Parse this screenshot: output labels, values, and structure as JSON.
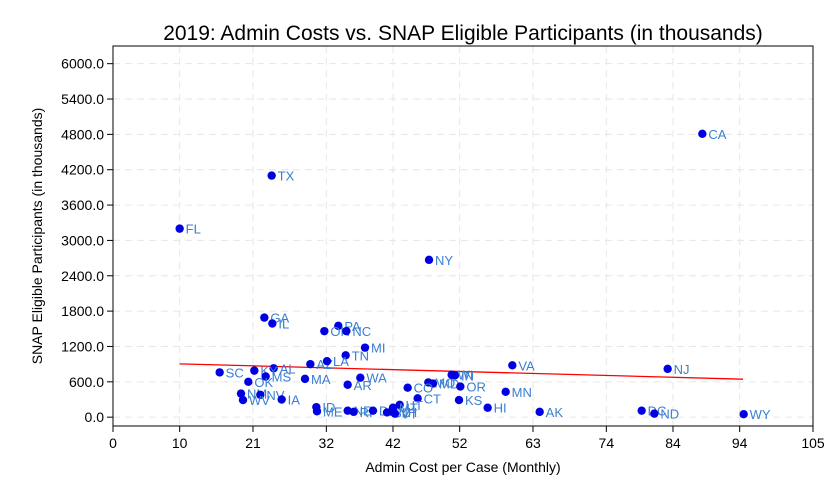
{
  "chart_data": {
    "type": "scatter",
    "title": "2019: Admin Costs vs. SNAP Eligible Participants (in thousands)",
    "xlabel": "Admin Cost per Case (Monthly)",
    "ylabel": "SNAP Eligible Participants (in thousands)",
    "xlim": [
      0,
      105
    ],
    "ylim": [
      -150,
      6300
    ],
    "xticks": [
      0,
      10,
      21,
      32,
      42,
      52,
      63,
      74,
      84,
      94,
      105
    ],
    "yticks": [
      "0.0",
      "600.0",
      "1200.0",
      "1800.0",
      "2400.0",
      "3000.0",
      "3600.0",
      "4200.0",
      "4800.0",
      "5400.0",
      "6000.0"
    ],
    "grid": true,
    "point_color": "#0000e0",
    "label_color": "#3a7fd0",
    "trendline": {
      "color": "#ff0000",
      "x": [
        10,
        94.5
      ],
      "y": [
        905,
        645
      ]
    },
    "points": [
      {
        "label": "CA",
        "x": 88.4,
        "y": 4810
      },
      {
        "label": "TX",
        "x": 23.8,
        "y": 4100
      },
      {
        "label": "FL",
        "x": 10.0,
        "y": 3200
      },
      {
        "label": "NY",
        "x": 47.4,
        "y": 2670
      },
      {
        "label": "GA",
        "x": 22.7,
        "y": 1690
      },
      {
        "label": "IL",
        "x": 23.9,
        "y": 1590
      },
      {
        "label": "PA",
        "x": 33.8,
        "y": 1550
      },
      {
        "label": "OH",
        "x": 31.7,
        "y": 1460
      },
      {
        "label": "NC",
        "x": 35.0,
        "y": 1460
      },
      {
        "label": "MI",
        "x": 37.8,
        "y": 1180
      },
      {
        "label": "TN",
        "x": 34.9,
        "y": 1050
      },
      {
        "label": "AZ",
        "x": 29.6,
        "y": 900
      },
      {
        "label": "LA",
        "x": 32.1,
        "y": 950
      },
      {
        "label": "VA",
        "x": 59.9,
        "y": 880
      },
      {
        "label": "NJ",
        "x": 83.2,
        "y": 820
      },
      {
        "label": "SC",
        "x": 16.0,
        "y": 760
      },
      {
        "label": "AL",
        "x": 24.1,
        "y": 830
      },
      {
        "label": "KY",
        "x": 21.2,
        "y": 790
      },
      {
        "label": "MS",
        "x": 22.9,
        "y": 690
      },
      {
        "label": "MA",
        "x": 28.8,
        "y": 650
      },
      {
        "label": "WA",
        "x": 37.1,
        "y": 670
      },
      {
        "label": "OK",
        "x": 20.3,
        "y": 600
      },
      {
        "label": "AR",
        "x": 35.2,
        "y": 550
      },
      {
        "label": "MO",
        "x": 47.3,
        "y": 590
      },
      {
        "label": "MD",
        "x": 48.0,
        "y": 570
      },
      {
        "label": "IN",
        "x": 51.3,
        "y": 710
      },
      {
        "label": "WI",
        "x": 50.8,
        "y": 720
      },
      {
        "label": "CO",
        "x": 44.2,
        "y": 500
      },
      {
        "label": "OR",
        "x": 52.1,
        "y": 520
      },
      {
        "label": "MN",
        "x": 58.9,
        "y": 430
      },
      {
        "label": "NM",
        "x": 19.2,
        "y": 400
      },
      {
        "label": "NV",
        "x": 22.1,
        "y": 380
      },
      {
        "label": "WV",
        "x": 19.5,
        "y": 290
      },
      {
        "label": "IA",
        "x": 25.3,
        "y": 300
      },
      {
        "label": "CT",
        "x": 45.7,
        "y": 320
      },
      {
        "label": "KS",
        "x": 51.9,
        "y": 290
      },
      {
        "label": "HI",
        "x": 56.2,
        "y": 160
      },
      {
        "label": "ID",
        "x": 30.5,
        "y": 170
      },
      {
        "label": "ME",
        "x": 30.6,
        "y": 100
      },
      {
        "label": "NE",
        "x": 35.2,
        "y": 110
      },
      {
        "label": "RI",
        "x": 36.1,
        "y": 90
      },
      {
        "label": "DE",
        "x": 39.0,
        "y": 110
      },
      {
        "label": "SD",
        "x": 41.1,
        "y": 80
      },
      {
        "label": "UT",
        "x": 43.0,
        "y": 210
      },
      {
        "label": "MT",
        "x": 42.0,
        "y": 160
      },
      {
        "label": "NH",
        "x": 41.9,
        "y": 90
      },
      {
        "label": "VT",
        "x": 42.3,
        "y": 60
      },
      {
        "label": "AK",
        "x": 64.0,
        "y": 90
      },
      {
        "label": "DC",
        "x": 79.3,
        "y": 110
      },
      {
        "label": "ND",
        "x": 81.2,
        "y": 60
      },
      {
        "label": "WY",
        "x": 94.6,
        "y": 50
      }
    ]
  }
}
